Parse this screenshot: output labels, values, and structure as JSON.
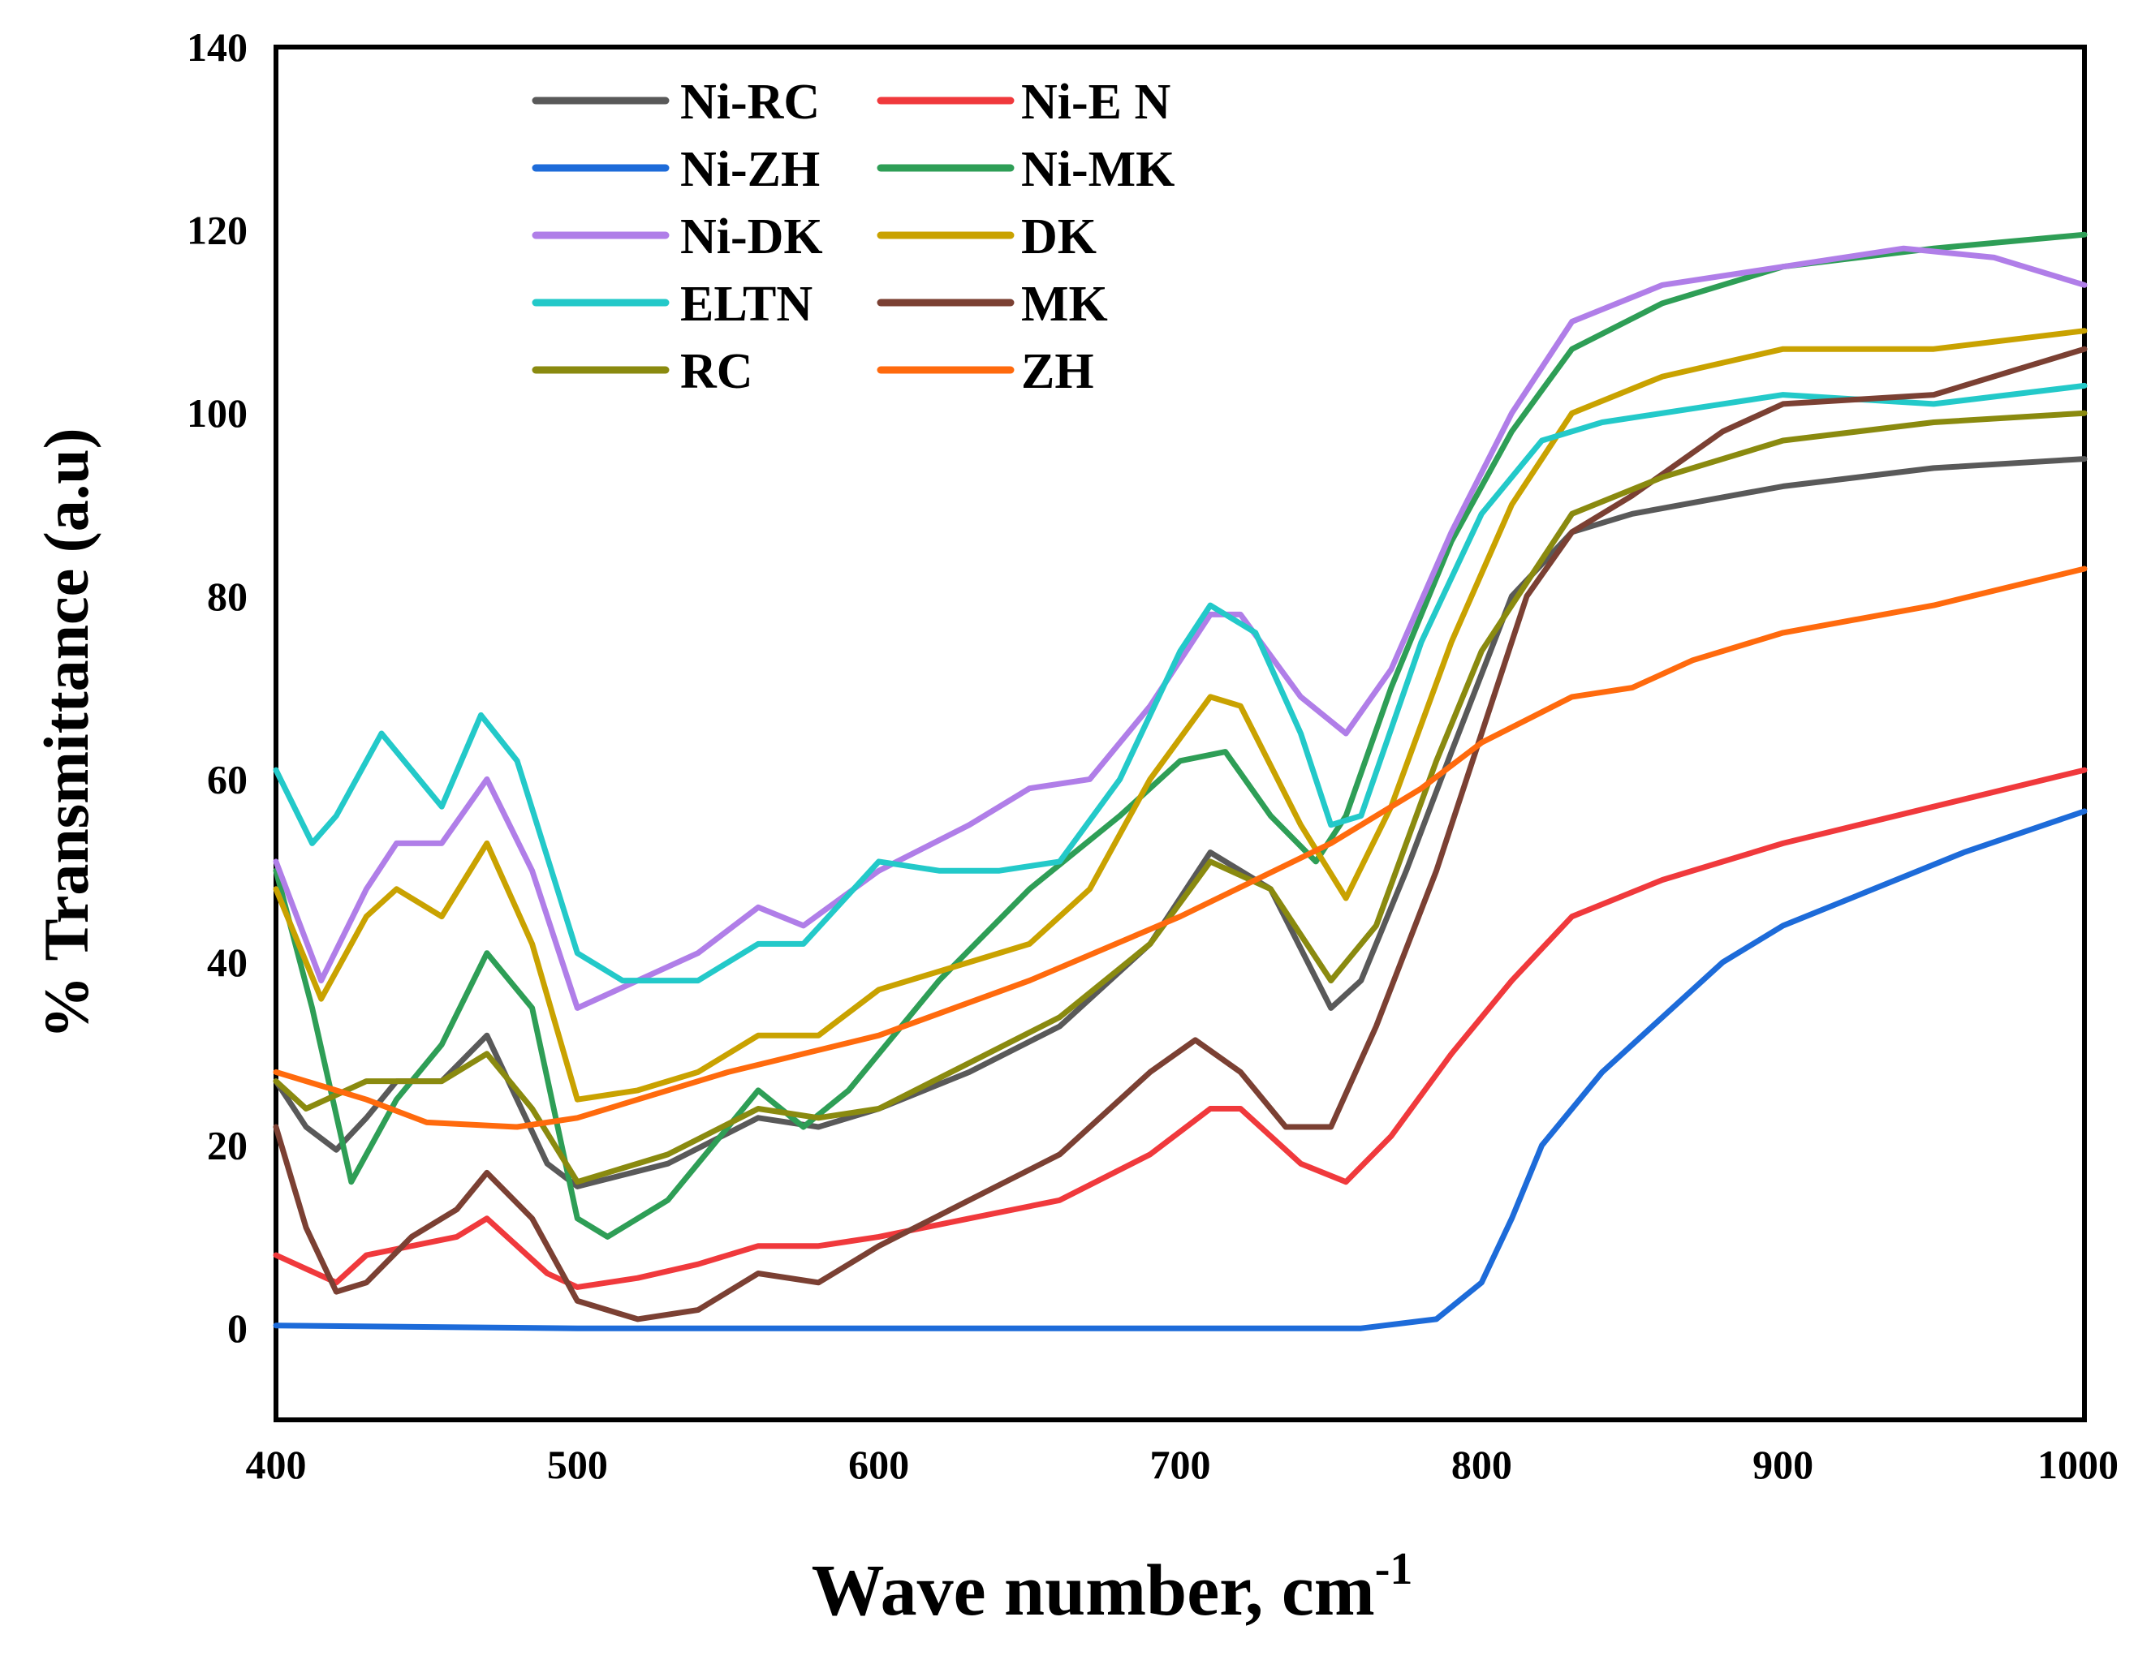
{
  "chart_data": {
    "type": "line",
    "title": "",
    "xlabel": "Wave number,  cm",
    "xlabel_superscript": "-1",
    "ylabel": "% Transmittance (a.u)",
    "xlim": [
      400,
      1000
    ],
    "ylim": [
      -10,
      140
    ],
    "x_ticks": [
      "400",
      "500",
      "600",
      "700",
      "800",
      "900",
      "1000"
    ],
    "y_ticks": [
      "0",
      "20",
      "40",
      "60",
      "80",
      "100",
      "120",
      "140"
    ],
    "grid": false,
    "legend_position": "top-left",
    "series": [
      {
        "name": "Ni-RC",
        "color": "#595959",
        "points": [
          [
            400,
            27
          ],
          [
            410,
            22
          ],
          [
            420,
            19.5
          ],
          [
            430,
            23
          ],
          [
            440,
            27
          ],
          [
            455,
            27
          ],
          [
            470,
            32
          ],
          [
            490,
            18
          ],
          [
            500,
            15.5
          ],
          [
            530,
            18
          ],
          [
            560,
            23
          ],
          [
            580,
            22
          ],
          [
            600,
            24
          ],
          [
            630,
            28
          ],
          [
            660,
            33
          ],
          [
            690,
            42
          ],
          [
            710,
            52
          ],
          [
            730,
            48
          ],
          [
            750,
            35
          ],
          [
            760,
            38
          ],
          [
            775,
            50
          ],
          [
            790,
            63
          ],
          [
            810,
            80
          ],
          [
            830,
            87
          ],
          [
            850,
            89
          ],
          [
            900,
            92
          ],
          [
            950,
            94
          ],
          [
            1000,
            95
          ]
        ]
      },
      {
        "name": "Ni-E N",
        "color": "#f0393c",
        "points": [
          [
            400,
            8
          ],
          [
            420,
            5
          ],
          [
            430,
            8
          ],
          [
            460,
            10
          ],
          [
            470,
            12
          ],
          [
            490,
            6
          ],
          [
            500,
            4.5
          ],
          [
            520,
            5.5
          ],
          [
            540,
            7
          ],
          [
            560,
            9
          ],
          [
            580,
            9
          ],
          [
            600,
            10
          ],
          [
            630,
            12
          ],
          [
            660,
            14
          ],
          [
            690,
            19
          ],
          [
            710,
            24
          ],
          [
            720,
            24
          ],
          [
            740,
            18
          ],
          [
            755,
            16
          ],
          [
            770,
            21
          ],
          [
            790,
            30
          ],
          [
            810,
            38
          ],
          [
            830,
            45
          ],
          [
            860,
            49
          ],
          [
            900,
            53
          ],
          [
            950,
            57
          ],
          [
            1000,
            61
          ]
        ]
      },
      {
        "name": "Ni-ZH",
        "color": "#1d6bd9",
        "points": [
          [
            400,
            0.3
          ],
          [
            500,
            0
          ],
          [
            700,
            0
          ],
          [
            760,
            0
          ],
          [
            785,
            1
          ],
          [
            800,
            5
          ],
          [
            810,
            12
          ],
          [
            820,
            20
          ],
          [
            840,
            28
          ],
          [
            860,
            34
          ],
          [
            880,
            40
          ],
          [
            900,
            44
          ],
          [
            930,
            48
          ],
          [
            960,
            52
          ],
          [
            1000,
            56.5
          ]
        ]
      },
      {
        "name": "Ni-MK",
        "color": "#2e9e56",
        "points": [
          [
            400,
            50
          ],
          [
            412,
            35
          ],
          [
            425,
            16
          ],
          [
            440,
            25
          ],
          [
            455,
            31
          ],
          [
            470,
            41
          ],
          [
            485,
            35
          ],
          [
            500,
            12
          ],
          [
            510,
            10
          ],
          [
            530,
            14
          ],
          [
            545,
            20
          ],
          [
            560,
            26
          ],
          [
            575,
            22
          ],
          [
            590,
            26
          ],
          [
            620,
            38
          ],
          [
            650,
            48
          ],
          [
            680,
            56
          ],
          [
            700,
            62
          ],
          [
            715,
            63
          ],
          [
            730,
            56
          ],
          [
            745,
            51
          ],
          [
            755,
            56
          ],
          [
            770,
            70
          ],
          [
            790,
            86
          ],
          [
            810,
            98
          ],
          [
            830,
            107
          ],
          [
            860,
            112
          ],
          [
            900,
            116
          ],
          [
            950,
            118
          ],
          [
            1000,
            119.5
          ]
        ]
      },
      {
        "name": "Ni-DK",
        "color": "#b07ee8",
        "points": [
          [
            400,
            51
          ],
          [
            415,
            38
          ],
          [
            430,
            48
          ],
          [
            440,
            53
          ],
          [
            455,
            53
          ],
          [
            470,
            60
          ],
          [
            485,
            50
          ],
          [
            500,
            35
          ],
          [
            520,
            38
          ],
          [
            540,
            41
          ],
          [
            560,
            46
          ],
          [
            575,
            44
          ],
          [
            600,
            50
          ],
          [
            630,
            55
          ],
          [
            650,
            59
          ],
          [
            670,
            60
          ],
          [
            690,
            68
          ],
          [
            710,
            78
          ],
          [
            720,
            78
          ],
          [
            740,
            69
          ],
          [
            755,
            65
          ],
          [
            770,
            72
          ],
          [
            790,
            87
          ],
          [
            810,
            100
          ],
          [
            830,
            110
          ],
          [
            860,
            114
          ],
          [
            900,
            116
          ],
          [
            940,
            118
          ],
          [
            970,
            117
          ],
          [
            1000,
            114
          ]
        ]
      },
      {
        "name": "DK",
        "color": "#c9a200",
        "points": [
          [
            400,
            48
          ],
          [
            415,
            36
          ],
          [
            430,
            45
          ],
          [
            440,
            48
          ],
          [
            455,
            45
          ],
          [
            470,
            53
          ],
          [
            485,
            42
          ],
          [
            500,
            25
          ],
          [
            520,
            26
          ],
          [
            540,
            28
          ],
          [
            560,
            32
          ],
          [
            580,
            32
          ],
          [
            600,
            37
          ],
          [
            630,
            40
          ],
          [
            650,
            42
          ],
          [
            670,
            48
          ],
          [
            690,
            60
          ],
          [
            710,
            69
          ],
          [
            720,
            68
          ],
          [
            740,
            55
          ],
          [
            755,
            47
          ],
          [
            770,
            57
          ],
          [
            790,
            75
          ],
          [
            810,
            90
          ],
          [
            830,
            100
          ],
          [
            860,
            104
          ],
          [
            900,
            107
          ],
          [
            950,
            107
          ],
          [
            1000,
            109
          ]
        ]
      },
      {
        "name": "ELTN",
        "color": "#23c9c9",
        "points": [
          [
            400,
            61
          ],
          [
            412,
            53
          ],
          [
            420,
            56
          ],
          [
            435,
            65
          ],
          [
            455,
            57
          ],
          [
            468,
            67
          ],
          [
            480,
            62
          ],
          [
            500,
            41
          ],
          [
            515,
            38
          ],
          [
            540,
            38
          ],
          [
            560,
            42
          ],
          [
            575,
            42
          ],
          [
            600,
            51
          ],
          [
            620,
            50
          ],
          [
            640,
            50
          ],
          [
            660,
            51
          ],
          [
            680,
            60
          ],
          [
            700,
            74
          ],
          [
            710,
            79
          ],
          [
            725,
            76
          ],
          [
            740,
            65
          ],
          [
            750,
            55
          ],
          [
            760,
            56
          ],
          [
            780,
            75
          ],
          [
            800,
            89
          ],
          [
            820,
            97
          ],
          [
            840,
            99
          ],
          [
            880,
            101
          ],
          [
            900,
            102
          ],
          [
            950,
            101
          ],
          [
            1000,
            103
          ]
        ]
      },
      {
        "name": "MK",
        "color": "#7b4033",
        "points": [
          [
            400,
            22
          ],
          [
            410,
            11
          ],
          [
            420,
            4
          ],
          [
            430,
            5
          ],
          [
            445,
            10
          ],
          [
            460,
            13
          ],
          [
            470,
            17
          ],
          [
            485,
            12
          ],
          [
            500,
            3
          ],
          [
            520,
            1
          ],
          [
            540,
            2
          ],
          [
            560,
            6
          ],
          [
            580,
            5
          ],
          [
            600,
            9
          ],
          [
            630,
            14
          ],
          [
            660,
            19
          ],
          [
            690,
            28
          ],
          [
            705,
            31.5
          ],
          [
            720,
            28
          ],
          [
            735,
            22
          ],
          [
            750,
            22
          ],
          [
            765,
            33
          ],
          [
            785,
            50
          ],
          [
            800,
            65
          ],
          [
            815,
            80
          ],
          [
            830,
            87
          ],
          [
            850,
            91
          ],
          [
            880,
            98
          ],
          [
            900,
            101
          ],
          [
            950,
            102
          ],
          [
            1000,
            107
          ]
        ]
      },
      {
        "name": "RC",
        "color": "#8a8a0f",
        "points": [
          [
            400,
            27
          ],
          [
            410,
            24
          ],
          [
            430,
            27
          ],
          [
            455,
            27
          ],
          [
            470,
            30
          ],
          [
            485,
            24
          ],
          [
            500,
            16
          ],
          [
            530,
            19
          ],
          [
            560,
            24
          ],
          [
            580,
            23
          ],
          [
            600,
            24
          ],
          [
            630,
            29
          ],
          [
            660,
            34
          ],
          [
            690,
            42
          ],
          [
            710,
            51
          ],
          [
            730,
            48
          ],
          [
            750,
            38
          ],
          [
            765,
            44
          ],
          [
            785,
            62
          ],
          [
            800,
            74
          ],
          [
            820,
            84
          ],
          [
            830,
            89
          ],
          [
            860,
            93
          ],
          [
            900,
            97
          ],
          [
            950,
            99
          ],
          [
            1000,
            100
          ]
        ]
      },
      {
        "name": "ZH",
        "color": "#ff6a0d",
        "points": [
          [
            400,
            28
          ],
          [
            430,
            25
          ],
          [
            450,
            22.5
          ],
          [
            480,
            22
          ],
          [
            500,
            23
          ],
          [
            550,
            28
          ],
          [
            600,
            32
          ],
          [
            650,
            38
          ],
          [
            700,
            45
          ],
          [
            750,
            53
          ],
          [
            780,
            59
          ],
          [
            800,
            64
          ],
          [
            830,
            69
          ],
          [
            850,
            70
          ],
          [
            870,
            73
          ],
          [
            900,
            76
          ],
          [
            950,
            79
          ],
          [
            1000,
            83
          ]
        ]
      }
    ]
  }
}
